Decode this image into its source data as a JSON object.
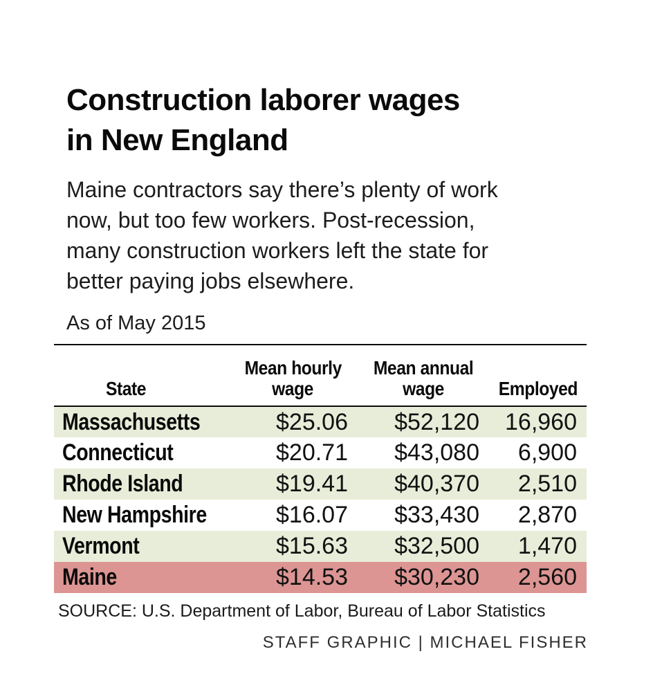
{
  "title": {
    "line1": "Construction laborer wages",
    "line2": "in New England"
  },
  "intro": {
    "lines": [
      "Maine contractors say there’s plenty of work",
      "now, but too few workers. Post-recession,",
      "many construction workers left the state for",
      "better paying jobs elsewhere."
    ]
  },
  "table": {
    "as_of": "As of May 2015",
    "headers": {
      "state": "State",
      "hourly_line1": "Mean hourly",
      "hourly_line2": "wage",
      "annual_line1": "Mean annual",
      "annual_line2": "wage",
      "employed": "Employed"
    },
    "rows": [
      {
        "state": "Massachusetts",
        "hourly": "$25.06",
        "annual": "$52,120",
        "employed": "16,960",
        "highlight": "green"
      },
      {
        "state": "Connecticut",
        "hourly": "$20.71",
        "annual": "$43,080",
        "employed": "6,900",
        "highlight": "none"
      },
      {
        "state": "Rhode Island",
        "hourly": "$19.41",
        "annual": "$40,370",
        "employed": "2,510",
        "highlight": "green"
      },
      {
        "state": "New Hampshire",
        "hourly": "$16.07",
        "annual": "$33,430",
        "employed": "2,870",
        "highlight": "none"
      },
      {
        "state": "Vermont",
        "hourly": "$15.63",
        "annual": "$32,500",
        "employed": "1,470",
        "highlight": "green"
      },
      {
        "state": "Maine",
        "hourly": "$14.53",
        "annual": "$30,230",
        "employed": "2,560",
        "highlight": "red"
      }
    ]
  },
  "source": "SOURCE: U.S. Department of Labor, Bureau of Labor Statistics",
  "credit": "STAFF GRAPHIC | MICHAEL FISHER",
  "palette": {
    "row_green": "#e8edd9",
    "maine_red": "#dc9593",
    "rule_black": "#0a0a0a"
  },
  "chart_data": {
    "type": "table",
    "title": "Construction laborer wages in New England",
    "subtitle": "Maine contractors say there’s plenty of work now, but too few workers. Post-recession, many construction workers left the state for better paying jobs elsewhere.",
    "as_of": "As of May 2015",
    "columns": [
      "State",
      "Mean hourly wage",
      "Mean annual wage",
      "Employed"
    ],
    "rows": [
      [
        "Massachusetts",
        25.06,
        52120,
        16960
      ],
      [
        "Connecticut",
        20.71,
        43080,
        6900
      ],
      [
        "Rhode Island",
        19.41,
        40370,
        2510
      ],
      [
        "New Hampshire",
        16.07,
        33430,
        2870
      ],
      [
        "Vermont",
        15.63,
        32500,
        1470
      ],
      [
        "Maine",
        14.53,
        30230,
        2560
      ]
    ],
    "highlighted_row": "Maine",
    "row_striping": "alternating pale green starting with first row; Maine row highlighted red",
    "source": "SOURCE: U.S. Department of Labor, Bureau of Labor Statistics",
    "credit": "STAFF GRAPHIC | MICHAEL FISHER"
  }
}
